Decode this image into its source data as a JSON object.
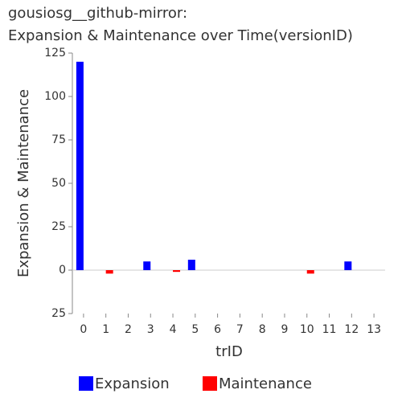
{
  "chart_data": {
    "type": "bar",
    "title": [
      "gousiosg__github-mirror:",
      "Expansion & Maintenance over Time(versionID)"
    ],
    "x_label": "trID",
    "y_label": "Expansion & Maintenance",
    "categories": [
      0,
      1,
      2,
      3,
      4,
      5,
      6,
      7,
      8,
      9,
      10,
      11,
      12,
      13
    ],
    "series": [
      {
        "name": "Expansion",
        "color": "#0000ff",
        "values": [
          120,
          null,
          null,
          5,
          null,
          6,
          null,
          null,
          null,
          null,
          null,
          null,
          5,
          null
        ]
      },
      {
        "name": "Maintenance",
        "color": "#ff0000",
        "values": [
          null,
          -2,
          null,
          null,
          -1,
          null,
          null,
          null,
          null,
          null,
          -2,
          null,
          null,
          null
        ]
      }
    ],
    "ylim": [
      -25,
      125
    ],
    "yticks": [
      {
        "value": -25,
        "label": "25"
      },
      0,
      25,
      50,
      75,
      100,
      125
    ]
  }
}
